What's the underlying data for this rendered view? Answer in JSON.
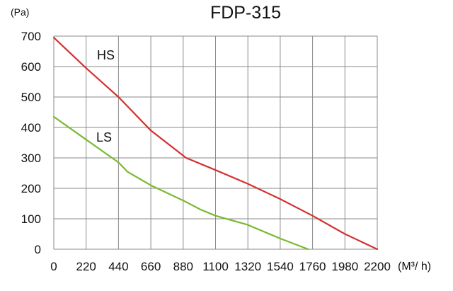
{
  "chart_data": {
    "type": "line",
    "title": "FDP-315",
    "y_unit_label": "(Pa)",
    "x_unit_label": "(M³/ h)",
    "xlim": [
      0,
      2200
    ],
    "ylim": [
      0,
      700
    ],
    "x_ticks": [
      "0",
      "220",
      "440",
      "660",
      "880",
      "1100",
      "1320",
      "1540",
      "1760",
      "1980",
      "2200"
    ],
    "y_ticks": [
      "700",
      "600",
      "500",
      "400",
      "300",
      "200",
      "100",
      "0"
    ],
    "x_tick_values": [
      0,
      220,
      440,
      660,
      880,
      1100,
      1320,
      1540,
      1760,
      1980,
      2200
    ],
    "y_tick_values": [
      700,
      600,
      500,
      400,
      300,
      200,
      100,
      0
    ],
    "grid": true,
    "series": [
      {
        "name": "HS",
        "color": "#d63030",
        "points": [
          [
            0,
            695
          ],
          [
            220,
            595
          ],
          [
            440,
            500
          ],
          [
            660,
            390
          ],
          [
            900,
            300
          ],
          [
            1100,
            260
          ],
          [
            1320,
            215
          ],
          [
            1540,
            165
          ],
          [
            1760,
            110
          ],
          [
            1980,
            50
          ],
          [
            2200,
            0
          ]
        ]
      },
      {
        "name": "LS",
        "color": "#7ab830",
        "points": [
          [
            0,
            435
          ],
          [
            220,
            360
          ],
          [
            440,
            285
          ],
          [
            500,
            255
          ],
          [
            660,
            210
          ],
          [
            880,
            160
          ],
          [
            1000,
            130
          ],
          [
            1100,
            110
          ],
          [
            1320,
            80
          ],
          [
            1540,
            35
          ],
          [
            1730,
            0
          ]
        ]
      }
    ]
  }
}
